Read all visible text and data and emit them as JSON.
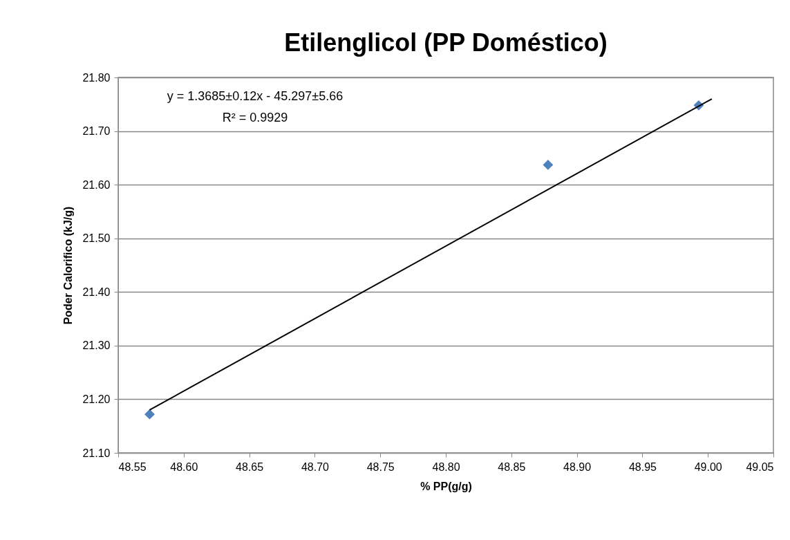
{
  "chart_data": {
    "type": "scatter",
    "title": "Etilenglicol (PP Doméstico)",
    "xlabel": "% PP(g/g)",
    "ylabel": "Poder Calorifico (kJ/g)",
    "series": [
      {
        "color": "#4f81bd",
        "marker": "diamond",
        "x": [
          48.574,
          48.878,
          48.993
        ],
        "values": [
          21.172,
          21.637,
          21.748
        ]
      },
      {
        "type": "line",
        "color": "#000000",
        "x": [
          48.574,
          49.003
        ],
        "values": [
          21.18,
          21.76
        ]
      }
    ],
    "xlim": [
      48.55,
      49.05
    ],
    "xticks": [
      {
        "value": 48.55,
        "label": "48.55"
      },
      {
        "value": 48.6,
        "label": "48.60"
      },
      {
        "value": 48.65,
        "label": "48.65"
      },
      {
        "value": 48.7,
        "label": "48.70"
      },
      {
        "value": 48.75,
        "label": "48.75"
      },
      {
        "value": 48.8,
        "label": "48.80"
      },
      {
        "value": 48.85,
        "label": "48.85"
      },
      {
        "value": 48.9,
        "label": "48.90"
      },
      {
        "value": 48.95,
        "label": "48.95"
      },
      {
        "value": 49.0,
        "label": "49.00"
      },
      {
        "value": 49.05,
        "label": "49.05"
      }
    ],
    "ylim": [
      21.1,
      21.8
    ],
    "yticks": [
      {
        "value": 21.1,
        "label": "21.10"
      },
      {
        "value": 21.2,
        "label": "21.20"
      },
      {
        "value": 21.3,
        "label": "21.30"
      },
      {
        "value": 21.4,
        "label": "21.40"
      },
      {
        "value": 21.5,
        "label": "21.50"
      },
      {
        "value": 21.6,
        "label": "21.60"
      },
      {
        "value": 21.7,
        "label": "21.70"
      },
      {
        "value": 21.8,
        "label": "21.80"
      }
    ],
    "grid": "y",
    "annotations": [
      "y = 1.3685±0.12x - 45.297±5.66",
      "R² = 0.9929"
    ]
  }
}
